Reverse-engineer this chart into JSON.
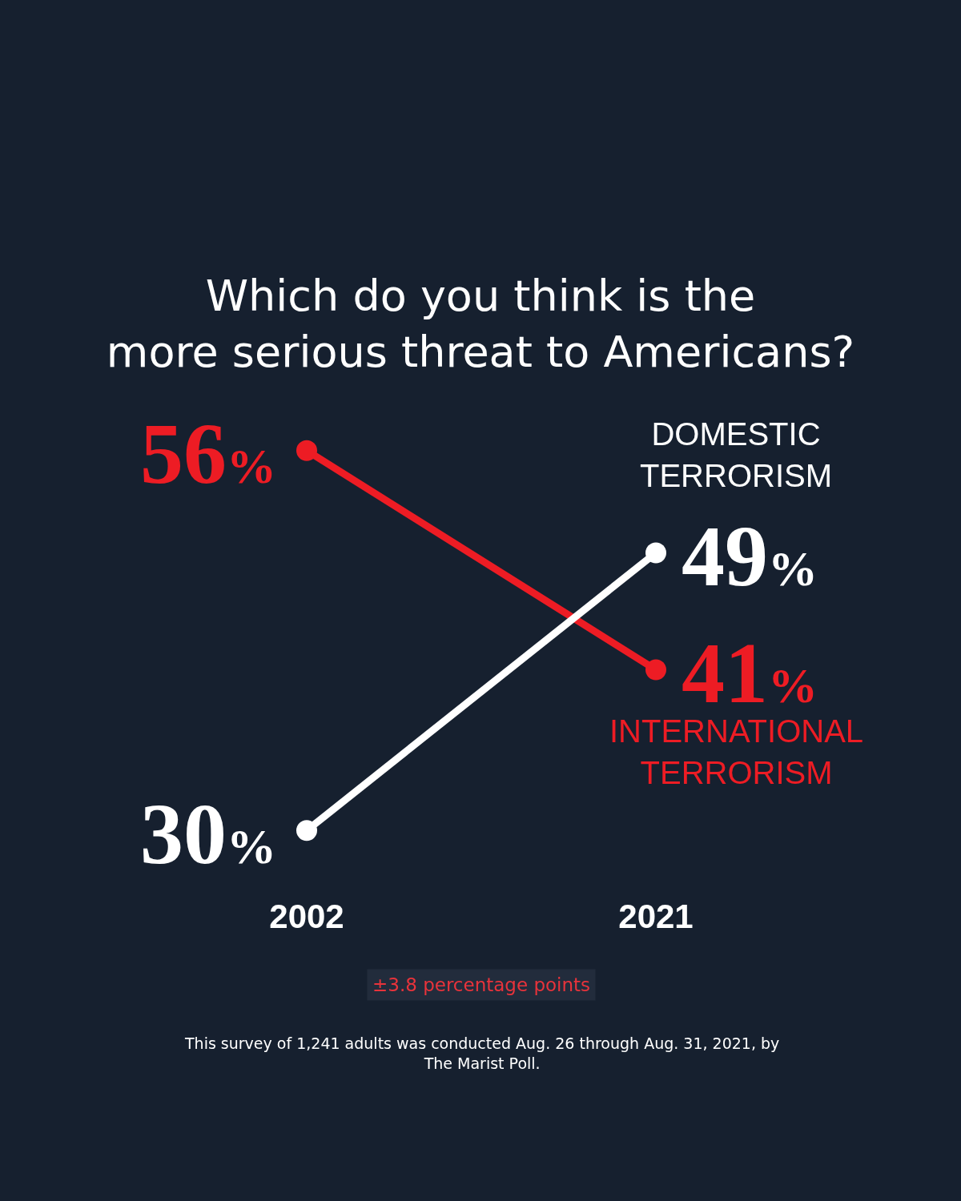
{
  "chart_data": {
    "type": "line",
    "title": "Which do you think is the\nmore serious threat to Americans?",
    "categories": [
      "2002",
      "2021"
    ],
    "series": [
      {
        "name": "INTERNATIONAL\nTERRORISM",
        "color": "#ed1c24",
        "values": [
          56,
          41
        ],
        "value_labels": [
          "56%",
          "41%"
        ]
      },
      {
        "name": "DOMESTIC\nTERRORISM",
        "color": "#ffffff",
        "values": [
          30,
          49
        ],
        "value_labels": [
          "30%",
          "49%"
        ]
      }
    ],
    "annotations": [
      "±3.8 percentage points",
      "This survey of 1,241 adults was conducted Aug. 26 through Aug. 31, 2021, by\nThe Marist Poll."
    ],
    "legend": false,
    "grid": false,
    "marker": "circle",
    "line_style": "solid",
    "tick_labels": "x"
  }
}
